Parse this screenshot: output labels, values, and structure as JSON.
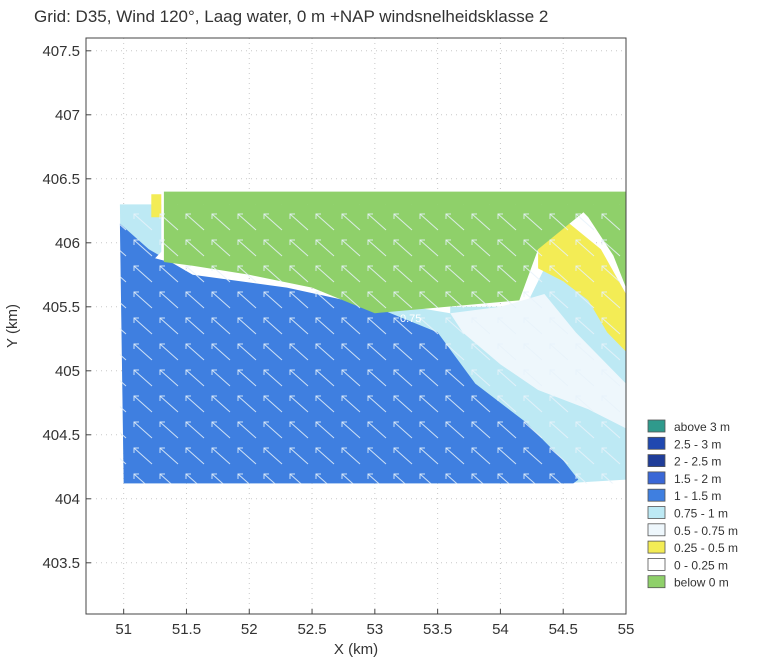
{
  "chart_data": {
    "type": "heatmap",
    "title": "Grid: D35, Wind 120°, Laag water, 0 m +NAP windsnelheidsklasse 2",
    "xlabel": "X (km)",
    "ylabel": "Y (km)",
    "xlim": [
      50.7,
      55
    ],
    "ylim": [
      403.1,
      407.6
    ],
    "xticks": [
      "51",
      "51.5",
      "52",
      "52.5",
      "53",
      "53.5",
      "54",
      "54.5",
      "55"
    ],
    "yticks": [
      "403.5",
      "404",
      "404.5",
      "405",
      "405.5",
      "406",
      "406.5",
      "407",
      "407.5"
    ],
    "grid": true,
    "legend_position": "right",
    "legend": [
      {
        "label": "above 3 m",
        "color": "#2f9a8c"
      },
      {
        "label": "2.5 - 3 m",
        "color": "#2048b0"
      },
      {
        "label": "2 - 2.5 m",
        "color": "#1f3d99"
      },
      {
        "label": "1.5 - 2 m",
        "color": "#3a67d6"
      },
      {
        "label": "1 - 1.5 m",
        "color": "#3f7fe0"
      },
      {
        "label": "0.75 - 1 m",
        "color": "#bde9f4"
      },
      {
        "label": "0.5 - 0.75 m",
        "color": "#eef7fc"
      },
      {
        "label": "0.25 - 0.5 m",
        "color": "#f3ec55"
      },
      {
        "label": "0 - 0.25 m",
        "color": "#ffffff"
      },
      {
        "label": "below 0 m",
        "color": "#8fd06a"
      }
    ],
    "regions": [
      {
        "class": "0.75 - 1 m",
        "color": "#bde9f4",
        "polygon": [
          [
            50.97,
            406.3
          ],
          [
            51.3,
            406.3
          ],
          [
            51.3,
            405.9
          ],
          [
            51.5,
            405.75
          ],
          [
            52.3,
            405.6
          ],
          [
            53.2,
            405.5
          ],
          [
            54.2,
            405.5
          ],
          [
            54.35,
            405.8
          ],
          [
            54.8,
            405.5
          ],
          [
            55,
            405.4
          ],
          [
            55,
            404.15
          ],
          [
            54.5,
            404.12
          ],
          [
            51,
            404.12
          ],
          [
            50.97,
            406.3
          ]
        ]
      },
      {
        "class": "1 - 1.5 m",
        "color": "#3f7fe0",
        "polygon": [
          [
            50.97,
            406.15
          ],
          [
            51.2,
            405.95
          ],
          [
            51.55,
            405.75
          ],
          [
            52.3,
            405.65
          ],
          [
            53.0,
            405.5
          ],
          [
            53.5,
            405.3
          ],
          [
            53.8,
            404.9
          ],
          [
            54.2,
            404.6
          ],
          [
            54.5,
            404.3
          ],
          [
            54.62,
            404.15
          ],
          [
            54.58,
            404.12
          ],
          [
            51.0,
            404.12
          ]
        ]
      },
      {
        "class": "0.5 - 0.75 m",
        "color": "#eef7fc",
        "polygon": [
          [
            53.6,
            405.45
          ],
          [
            54.0,
            405.5
          ],
          [
            54.35,
            405.6
          ],
          [
            54.6,
            405.3
          ],
          [
            54.9,
            405.0
          ],
          [
            55,
            404.9
          ],
          [
            55,
            404.55
          ],
          [
            54.7,
            404.7
          ],
          [
            54.3,
            404.85
          ],
          [
            54.0,
            405.05
          ],
          [
            53.7,
            405.3
          ]
        ]
      },
      {
        "class": "0 - 0.25 m",
        "color": "#ffffff",
        "polygon": [
          [
            51.25,
            405.88
          ],
          [
            51.55,
            405.8
          ],
          [
            52.0,
            405.76
          ],
          [
            52.5,
            405.7
          ],
          [
            53.0,
            405.55
          ],
          [
            53.6,
            405.45
          ],
          [
            53.6,
            405.52
          ],
          [
            53.0,
            405.62
          ],
          [
            52.5,
            405.76
          ],
          [
            52.0,
            405.82
          ],
          [
            51.55,
            405.86
          ],
          [
            51.3,
            405.93
          ]
        ]
      },
      {
        "class": "0.25 - 0.5 m",
        "color": "#f3ec55",
        "polygon": [
          [
            54.3,
            406.0
          ],
          [
            54.55,
            406.15
          ],
          [
            54.8,
            405.95
          ],
          [
            55,
            405.6
          ],
          [
            55,
            405.15
          ],
          [
            54.85,
            405.3
          ],
          [
            54.7,
            405.55
          ],
          [
            54.5,
            405.7
          ],
          [
            54.3,
            405.8
          ]
        ]
      },
      {
        "class": "0.25 - 0.5 m",
        "color": "#f3ec55",
        "polygon": [
          [
            51.55,
            405.98
          ],
          [
            51.7,
            406.02
          ],
          [
            51.78,
            405.88
          ],
          [
            51.62,
            405.84
          ]
        ]
      },
      {
        "class": "0.25 - 0.5 m",
        "color": "#f3ec55",
        "polygon": [
          [
            51.22,
            406.38
          ],
          [
            51.3,
            406.38
          ],
          [
            51.3,
            406.2
          ],
          [
            51.22,
            406.2
          ]
        ]
      },
      {
        "class": "below 0 m",
        "color": "#8fd06a",
        "polygon": [
          [
            51.32,
            406.4
          ],
          [
            55,
            406.4
          ],
          [
            55,
            406.2
          ],
          [
            54.8,
            406.35
          ],
          [
            54.55,
            406.15
          ],
          [
            54.3,
            405.95
          ],
          [
            54.15,
            405.55
          ],
          [
            53.0,
            405.45
          ],
          [
            52.5,
            405.65
          ],
          [
            52.0,
            405.75
          ],
          [
            51.55,
            405.82
          ],
          [
            51.32,
            405.85
          ]
        ]
      },
      {
        "class": "below 0 m",
        "color": "#8fd06a",
        "polygon": [
          [
            54.55,
            406.35
          ],
          [
            55,
            406.35
          ],
          [
            55,
            405.65
          ],
          [
            54.9,
            405.9
          ],
          [
            54.7,
            406.2
          ]
        ]
      }
    ],
    "annotations": [
      "0.75"
    ]
  }
}
